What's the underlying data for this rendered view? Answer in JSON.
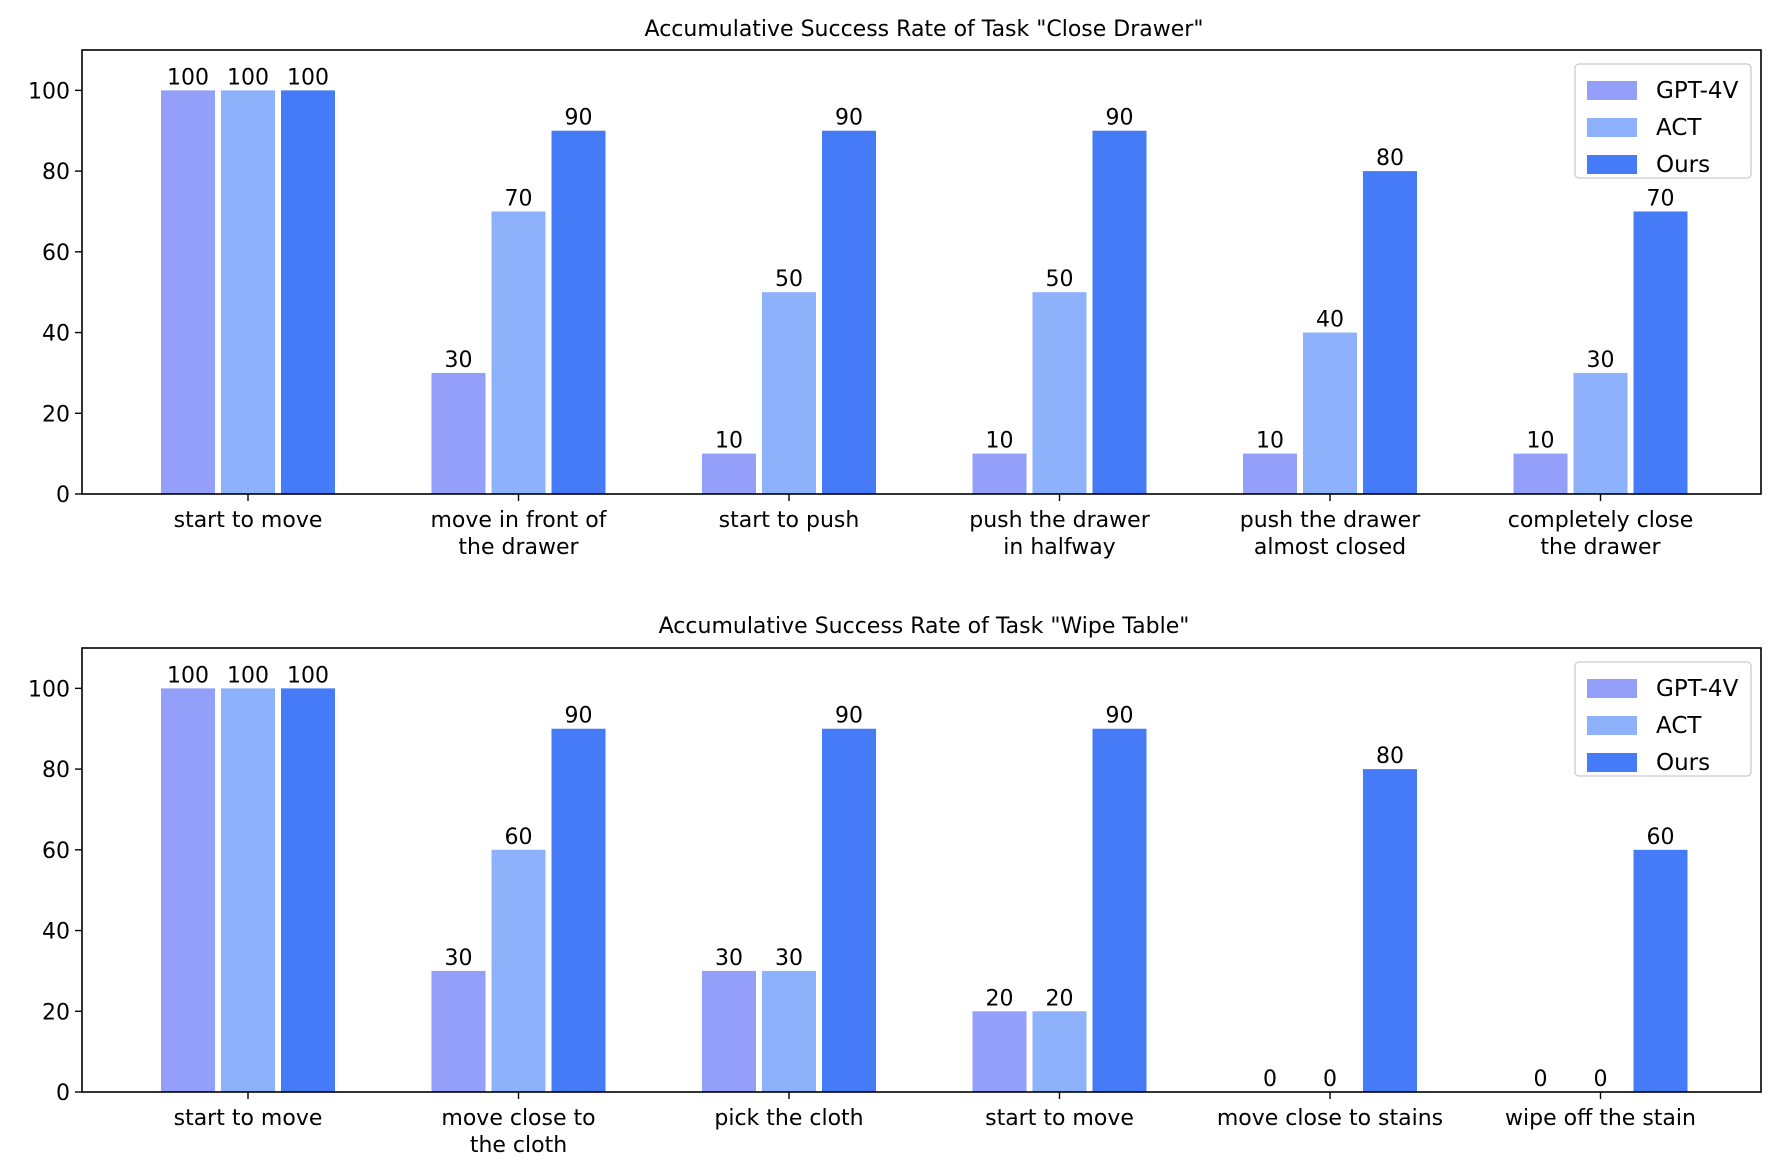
{
  "colors": {
    "GPT-4V": "#939ff8",
    "ACT": "#8db2fb",
    "Ours": "#457bf6"
  },
  "chart_data": [
    {
      "type": "bar",
      "title": "Accumulative Success Rate of Task \"Close Drawer\"",
      "xlabel": "",
      "ylabel": "",
      "ylim": [
        0,
        110
      ],
      "yticks": [
        0,
        20,
        40,
        60,
        80,
        100
      ],
      "grid": false,
      "legend_position": "top-right",
      "categories": [
        [
          "start to move"
        ],
        [
          "move in front of",
          "the drawer"
        ],
        [
          "start to push"
        ],
        [
          "push the drawer",
          "in halfway"
        ],
        [
          "push the drawer",
          "almost closed"
        ],
        [
          "completely close",
          "the drawer"
        ]
      ],
      "series": [
        {
          "name": "GPT-4V",
          "values": [
            100,
            30,
            10,
            10,
            10,
            10
          ]
        },
        {
          "name": "ACT",
          "values": [
            100,
            70,
            50,
            50,
            40,
            30
          ]
        },
        {
          "name": "Ours",
          "values": [
            100,
            90,
            90,
            90,
            80,
            70
          ]
        }
      ]
    },
    {
      "type": "bar",
      "title": "Accumulative Success Rate of Task \"Wipe Table\"",
      "xlabel": "",
      "ylabel": "",
      "ylim": [
        0,
        110
      ],
      "yticks": [
        0,
        20,
        40,
        60,
        80,
        100
      ],
      "grid": false,
      "legend_position": "top-right",
      "categories": [
        [
          "start to move"
        ],
        [
          "move close to",
          "the cloth"
        ],
        [
          "pick the cloth"
        ],
        [
          "start to move"
        ],
        [
          "move close to stains"
        ],
        [
          "wipe off the stain"
        ]
      ],
      "series": [
        {
          "name": "GPT-4V",
          "values": [
            100,
            30,
            30,
            20,
            0,
            0
          ]
        },
        {
          "name": "ACT",
          "values": [
            100,
            60,
            30,
            20,
            0,
            0
          ]
        },
        {
          "name": "Ours",
          "values": [
            100,
            90,
            90,
            90,
            80,
            60
          ]
        }
      ]
    }
  ]
}
